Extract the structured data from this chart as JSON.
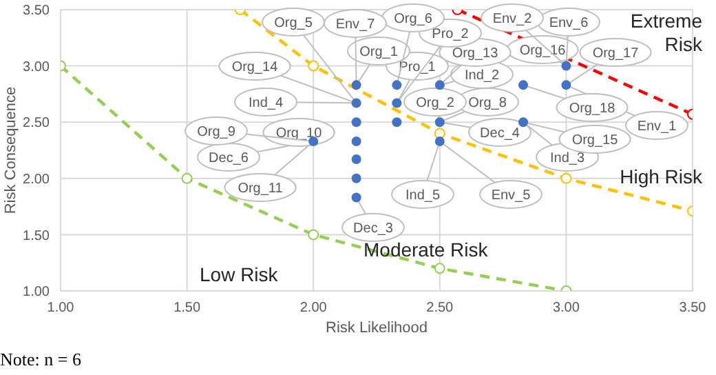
{
  "chart_data": {
    "type": "scatter",
    "xlabel": "Risk Likelihood",
    "ylabel": "Risk Consequence",
    "xlim": [
      1,
      3.5
    ],
    "ylim": [
      1,
      3.5
    ],
    "xticks": [
      {
        "value": 1,
        "label": "1.00"
      },
      {
        "value": 1.5,
        "label": "1.50"
      },
      {
        "value": 2,
        "label": "2.00"
      },
      {
        "value": 2.5,
        "label": "2.50"
      },
      {
        "value": 3,
        "label": "3.00"
      },
      {
        "value": 3.5,
        "label": "3.50"
      }
    ],
    "yticks": [
      {
        "value": 1,
        "label": "1.00"
      },
      {
        "value": 1.5,
        "label": "1.50"
      },
      {
        "value": 2,
        "label": "2.00"
      },
      {
        "value": 2.5,
        "label": "2.50"
      },
      {
        "value": 3,
        "label": "3.00"
      },
      {
        "value": 3.5,
        "label": "3.50"
      }
    ],
    "grid": true,
    "legend": false,
    "series": [
      {
        "color": "#4472c4",
        "marker": "circle",
        "x": [
          2.0,
          2.17,
          2.17,
          2.17,
          2.17,
          2.17,
          2.17,
          2.17,
          2.33,
          2.33,
          2.33,
          2.5,
          2.5,
          2.5,
          2.83,
          2.83,
          3.0,
          3.0
        ],
        "values": [
          2.33,
          2.83,
          2.67,
          2.5,
          2.33,
          2.17,
          2.0,
          1.83,
          2.83,
          2.67,
          2.5,
          2.83,
          2.5,
          2.33,
          2.83,
          2.5,
          3.0,
          2.83
        ]
      },
      {
        "type": "line",
        "color": "#92d050",
        "line_style": "dashed",
        "marker": "circle",
        "x": [
          1,
          1.5,
          2,
          2.5,
          3
        ],
        "values": [
          3,
          2,
          1.5,
          1.2,
          1
        ]
      },
      {
        "type": "line",
        "color": "#ffc000",
        "line_style": "dashed",
        "marker": "circle",
        "x": [
          1.71,
          2,
          2.5,
          3,
          3.5
        ],
        "values": [
          3.5,
          3,
          2.4,
          2,
          1.71
        ]
      },
      {
        "type": "line",
        "color": "#ff0000",
        "line_style": "dashed",
        "marker": "circle",
        "x": [
          2.57,
          3.5
        ],
        "values": [
          3.5,
          2.57
        ]
      }
    ],
    "annotations": [
      {
        "text": "Org_5",
        "x": 2.17,
        "y": 2.67
      },
      {
        "text": "Env_7",
        "x": 2.17,
        "y": 2.83
      },
      {
        "text": "Org_6",
        "x": 2.33,
        "y": 2.83
      },
      {
        "text": "Pro_2",
        "x": 2.33,
        "y": 2.67
      },
      {
        "text": "Env_2",
        "x": 3.0,
        "y": 3.0
      },
      {
        "text": "Env_6",
        "x": 3.0,
        "y": 3.0
      },
      {
        "text": "Org_14",
        "x": 2.17,
        "y": 2.67
      },
      {
        "text": "Org_1",
        "x": 2.17,
        "y": 2.83
      },
      {
        "text": "Pro_1",
        "x": 2.33,
        "y": 2.67
      },
      {
        "text": "Org_13",
        "x": 2.5,
        "y": 2.83
      },
      {
        "text": "Ind_2",
        "x": 2.5,
        "y": 2.83
      },
      {
        "text": "Org_16",
        "x": 3.0,
        "y": 3.0
      },
      {
        "text": "Org_17",
        "x": 3.0,
        "y": 2.83
      },
      {
        "text": "Ind_4",
        "x": 2.17,
        "y": 2.67
      },
      {
        "text": "Org_2",
        "x": 2.5,
        "y": 2.5
      },
      {
        "text": "Org_8",
        "x": 2.5,
        "y": 2.5
      },
      {
        "text": "Org_18",
        "x": 2.83,
        "y": 2.83
      },
      {
        "text": "Env_1",
        "x": 3.0,
        "y": 2.83
      },
      {
        "text": "Org_9",
        "x": 2.0,
        "y": 2.33
      },
      {
        "text": "Org_10",
        "x": 2.0,
        "y": 2.33
      },
      {
        "text": "Dec_4",
        "x": 2.5,
        "y": 2.5
      },
      {
        "text": "Org_15",
        "x": 2.83,
        "y": 2.5
      },
      {
        "text": "Dec_6",
        "x": 2.0,
        "y": 2.33
      },
      {
        "text": "Ind_3",
        "x": 2.83,
        "y": 2.5
      },
      {
        "text": "Org_11",
        "x": 2.0,
        "y": 2.33
      },
      {
        "text": "Ind_5",
        "x": 2.5,
        "y": 2.33
      },
      {
        "text": "Env_5",
        "x": 2.5,
        "y": 2.33
      },
      {
        "text": "Dec_3",
        "x": 2.17,
        "y": 1.83
      },
      "Extreme Risk",
      "High Risk",
      "Moderate Risk",
      "Low Risk",
      "Note: n = 6"
    ]
  }
}
